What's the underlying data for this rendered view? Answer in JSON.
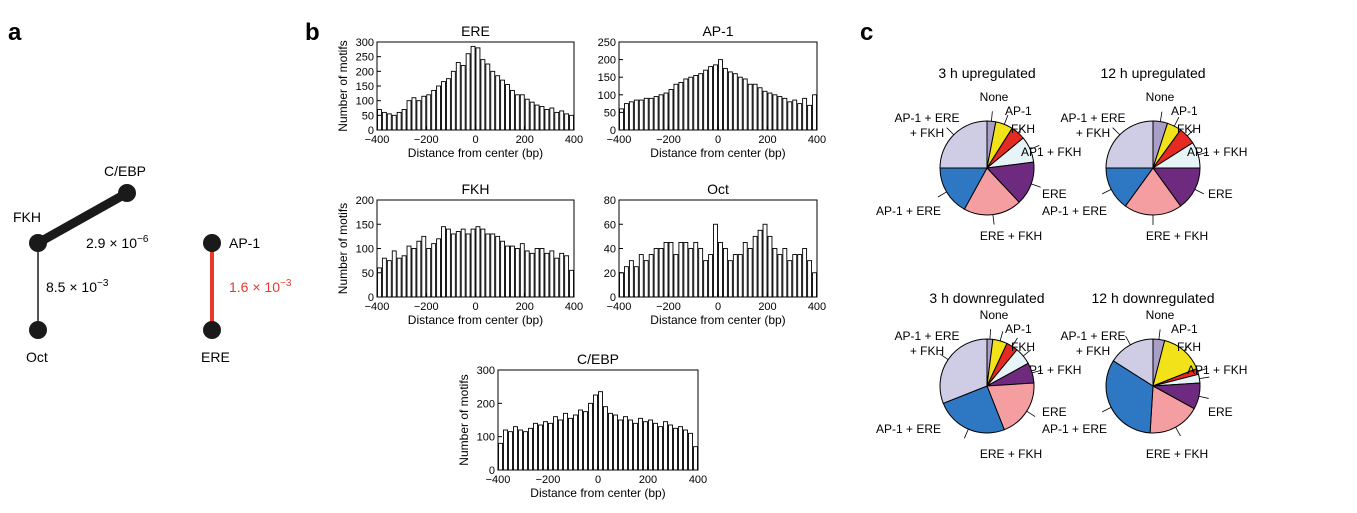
{
  "panels": {
    "a": "a",
    "b": "b",
    "c": "c"
  },
  "colors": {
    "line_black": "#1a1a1a",
    "line_red": "#e8392c",
    "red_text": "#e8392c",
    "bar_fill": "#ffffff",
    "bar_stroke": "#000000"
  },
  "network": {
    "nodes": [
      {
        "id": "FKH",
        "label": "FKH"
      },
      {
        "id": "CEBP",
        "label": "C/EBP"
      },
      {
        "id": "Oct",
        "label": "Oct"
      },
      {
        "id": "AP1",
        "label": "AP-1"
      },
      {
        "id": "ERE",
        "label": "ERE"
      }
    ],
    "edges": [
      {
        "from": "FKH",
        "to": "CEBP",
        "p_value": 2.9e-06,
        "mantissa": "2.9",
        "exponent": "−6",
        "weight": "thick",
        "color": "#1a1a1a"
      },
      {
        "from": "FKH",
        "to": "Oct",
        "p_value": 0.0085,
        "mantissa": "8.5",
        "exponent": "−3",
        "weight": "thin",
        "color": "#1a1a1a"
      },
      {
        "from": "AP1",
        "to": "ERE",
        "p_value": 0.0016,
        "mantissa": "1.6",
        "exponent": "−3",
        "weight": "medium",
        "color": "#e8392c"
      }
    ]
  },
  "chart_data": [
    {
      "type": "bar",
      "title": "ERE",
      "xlabel": "Distance from center (bp)",
      "ylabel": "Number of motifs",
      "xlim": [
        -400,
        400
      ],
      "ylim": [
        0,
        300
      ],
      "xticks": [
        -400,
        -200,
        0,
        200,
        400
      ],
      "yticks": [
        0,
        50,
        100,
        150,
        200,
        250,
        300
      ],
      "bin_width": 20,
      "x": [
        -390,
        -370,
        -350,
        -330,
        -310,
        -290,
        -270,
        -250,
        -230,
        -210,
        -190,
        -170,
        -150,
        -130,
        -110,
        -90,
        -70,
        -50,
        -30,
        -10,
        10,
        30,
        50,
        70,
        90,
        110,
        130,
        150,
        170,
        190,
        210,
        230,
        250,
        270,
        290,
        310,
        330,
        350,
        370,
        390
      ],
      "values": [
        70,
        60,
        55,
        50,
        60,
        70,
        100,
        110,
        100,
        115,
        120,
        135,
        150,
        165,
        175,
        200,
        230,
        220,
        260,
        285,
        280,
        240,
        225,
        200,
        185,
        170,
        155,
        135,
        120,
        120,
        105,
        95,
        85,
        80,
        70,
        75,
        60,
        65,
        55,
        50
      ]
    },
    {
      "type": "bar",
      "title": "AP-1",
      "xlabel": "Distance from center (bp)",
      "ylabel": "",
      "xlim": [
        -400,
        400
      ],
      "ylim": [
        0,
        250
      ],
      "xticks": [
        -400,
        -200,
        0,
        200,
        400
      ],
      "yticks": [
        0,
        50,
        100,
        150,
        200,
        250
      ],
      "bin_width": 20,
      "x": [
        -390,
        -370,
        -350,
        -330,
        -310,
        -290,
        -270,
        -250,
        -230,
        -210,
        -190,
        -170,
        -150,
        -130,
        -110,
        -90,
        -70,
        -50,
        -30,
        -10,
        10,
        30,
        50,
        70,
        90,
        110,
        130,
        150,
        170,
        190,
        210,
        230,
        250,
        270,
        290,
        310,
        330,
        350,
        370,
        390
      ],
      "values": [
        60,
        75,
        80,
        85,
        85,
        90,
        90,
        95,
        100,
        105,
        115,
        130,
        135,
        145,
        150,
        155,
        160,
        170,
        180,
        185,
        200,
        175,
        165,
        160,
        150,
        145,
        130,
        130,
        120,
        110,
        105,
        100,
        95,
        90,
        80,
        85,
        75,
        90,
        70,
        100
      ]
    },
    {
      "type": "bar",
      "title": "FKH",
      "xlabel": "Distance from center (bp)",
      "ylabel": "Number of motifs",
      "xlim": [
        -400,
        400
      ],
      "ylim": [
        0,
        200
      ],
      "xticks": [
        -400,
        -200,
        0,
        200,
        400
      ],
      "yticks": [
        0,
        50,
        100,
        150,
        200
      ],
      "bin_width": 20,
      "x": [
        -390,
        -370,
        -350,
        -330,
        -310,
        -290,
        -270,
        -250,
        -230,
        -210,
        -190,
        -170,
        -150,
        -130,
        -110,
        -90,
        -70,
        -50,
        -30,
        -10,
        10,
        30,
        50,
        70,
        90,
        110,
        130,
        150,
        170,
        190,
        210,
        230,
        250,
        270,
        290,
        310,
        330,
        350,
        370,
        390
      ],
      "values": [
        60,
        80,
        75,
        95,
        80,
        85,
        105,
        100,
        115,
        125,
        100,
        110,
        120,
        145,
        140,
        130,
        135,
        140,
        130,
        140,
        145,
        140,
        130,
        130,
        125,
        115,
        105,
        105,
        100,
        110,
        95,
        90,
        100,
        100,
        90,
        95,
        80,
        90,
        85,
        55
      ]
    },
    {
      "type": "bar",
      "title": "Oct",
      "xlabel": "Distance from center (bp)",
      "ylabel": "",
      "xlim": [
        -400,
        400
      ],
      "ylim": [
        0,
        80
      ],
      "xticks": [
        -400,
        -200,
        0,
        200,
        400
      ],
      "yticks": [
        0,
        20,
        40,
        60,
        80
      ],
      "bin_width": 20,
      "x": [
        -390,
        -370,
        -350,
        -330,
        -310,
        -290,
        -270,
        -250,
        -230,
        -210,
        -190,
        -170,
        -150,
        -130,
        -110,
        -90,
        -70,
        -50,
        -30,
        -10,
        10,
        30,
        50,
        70,
        90,
        110,
        130,
        150,
        170,
        190,
        210,
        230,
        250,
        270,
        290,
        310,
        330,
        350,
        370,
        390
      ],
      "values": [
        20,
        25,
        30,
        25,
        35,
        30,
        35,
        40,
        40,
        45,
        45,
        35,
        45,
        45,
        40,
        45,
        40,
        30,
        35,
        60,
        45,
        40,
        30,
        35,
        35,
        45,
        40,
        50,
        55,
        60,
        50,
        40,
        35,
        40,
        30,
        35,
        35,
        40,
        30,
        20
      ]
    },
    {
      "type": "bar",
      "title": "C/EBP",
      "xlabel": "Distance from center (bp)",
      "ylabel": "Number of motifs",
      "xlim": [
        -400,
        400
      ],
      "ylim": [
        0,
        300
      ],
      "xticks": [
        -400,
        -200,
        0,
        200,
        400
      ],
      "yticks": [
        0,
        100,
        200,
        300
      ],
      "bin_width": 20,
      "x": [
        -390,
        -370,
        -350,
        -330,
        -310,
        -290,
        -270,
        -250,
        -230,
        -210,
        -190,
        -170,
        -150,
        -130,
        -110,
        -90,
        -70,
        -50,
        -30,
        -10,
        10,
        30,
        50,
        70,
        90,
        110,
        130,
        150,
        170,
        190,
        210,
        230,
        250,
        270,
        290,
        310,
        330,
        350,
        370,
        390
      ],
      "values": [
        80,
        120,
        115,
        130,
        120,
        115,
        125,
        140,
        135,
        145,
        140,
        160,
        150,
        170,
        155,
        165,
        180,
        175,
        200,
        225,
        235,
        190,
        170,
        165,
        150,
        160,
        150,
        140,
        155,
        145,
        150,
        140,
        130,
        145,
        135,
        125,
        130,
        120,
        110,
        70
      ]
    },
    {
      "type": "pie",
      "title": "3 h upregulated",
      "slices": [
        {
          "label": "None",
          "value": 3,
          "color": "#a89ec8"
        },
        {
          "label": "AP-1",
          "value": 6,
          "color": "#f2e21a"
        },
        {
          "label": "FKH",
          "value": 5,
          "color": "#e42a22"
        },
        {
          "label": "AP1 + FKH",
          "value": 9,
          "color": "#e6f4f7"
        },
        {
          "label": "ERE",
          "value": 15,
          "color": "#6e2a7e"
        },
        {
          "label": "ERE + FKH",
          "value": 20,
          "color": "#f49ea2"
        },
        {
          "label": "AP-1 + ERE",
          "value": 17,
          "color": "#2e78c3"
        },
        {
          "label": "AP-1 + ERE + FKH",
          "value": 25,
          "color": "#cfcde6"
        }
      ]
    },
    {
      "type": "pie",
      "title": "12 h upregulated",
      "slices": [
        {
          "label": "None",
          "value": 5,
          "color": "#a89ec8"
        },
        {
          "label": "AP-1",
          "value": 5,
          "color": "#f2e21a"
        },
        {
          "label": "FKH",
          "value": 6,
          "color": "#e42a22"
        },
        {
          "label": "AP1 + FKH",
          "value": 9,
          "color": "#e6f4f7"
        },
        {
          "label": "ERE",
          "value": 15,
          "color": "#6e2a7e"
        },
        {
          "label": "ERE + FKH",
          "value": 20,
          "color": "#f49ea2"
        },
        {
          "label": "AP-1 + ERE",
          "value": 15,
          "color": "#2e78c3"
        },
        {
          "label": "AP-1 + ERE + FKH",
          "value": 25,
          "color": "#cfcde6"
        }
      ]
    },
    {
      "type": "pie",
      "title": "3 h downregulated",
      "slices": [
        {
          "label": "None",
          "value": 2,
          "color": "#a89ec8"
        },
        {
          "label": "AP-1",
          "value": 5,
          "color": "#f2e21a"
        },
        {
          "label": "FKH",
          "value": 4,
          "color": "#e42a22"
        },
        {
          "label": "AP1 + FKH",
          "value": 6,
          "color": "#e6f4f7"
        },
        {
          "label": "ERE",
          "value": 7,
          "color": "#6e2a7e"
        },
        {
          "label": "ERE + FKH",
          "value": 20,
          "color": "#f49ea2"
        },
        {
          "label": "AP-1 + ERE",
          "value": 25,
          "color": "#2e78c3"
        },
        {
          "label": "AP-1 + ERE + FKH",
          "value": 31,
          "color": "#cfcde6"
        }
      ]
    },
    {
      "type": "pie",
      "title": "12 h downregulated",
      "slices": [
        {
          "label": "None",
          "value": 4,
          "color": "#a89ec8"
        },
        {
          "label": "AP-1",
          "value": 15,
          "color": "#f2e21a"
        },
        {
          "label": "FKH",
          "value": 2,
          "color": "#e42a22"
        },
        {
          "label": "AP1 + FKH",
          "value": 3,
          "color": "#e6f4f7"
        },
        {
          "label": "ERE",
          "value": 9,
          "color": "#6e2a7e"
        },
        {
          "label": "ERE + FKH",
          "value": 18,
          "color": "#f49ea2"
        },
        {
          "label": "AP-1 + ERE",
          "value": 33,
          "color": "#2e78c3"
        },
        {
          "label": "AP-1 + ERE + FKH",
          "value": 16,
          "color": "#cfcde6"
        }
      ]
    }
  ]
}
